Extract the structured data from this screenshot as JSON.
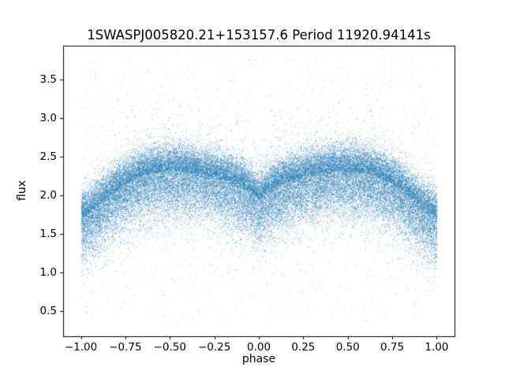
{
  "figure": {
    "background_color": "#ffffff",
    "text_color": "#000000"
  },
  "chart_data": {
    "type": "scatter",
    "title": "1SWASPJ005820.21+153157.6 Period 11920.94141s",
    "xlabel": "phase",
    "ylabel": "flux",
    "xlim": [
      -1.1,
      1.1
    ],
    "ylim": [
      0.17,
      3.94
    ],
    "x_tick_labels": [
      "−1.00",
      "−0.75",
      "−0.50",
      "−0.25",
      "0.00",
      "0.25",
      "0.50",
      "0.75",
      "1.00"
    ],
    "x_tick_values": [
      -1.0,
      -0.75,
      -0.5,
      -0.25,
      0.0,
      0.25,
      0.5,
      0.75,
      1.0
    ],
    "y_tick_labels": [
      "0.5",
      "1.0",
      "1.5",
      "2.0",
      "2.5",
      "3.0",
      "3.5"
    ],
    "y_tick_values": [
      0.5,
      1.0,
      1.5,
      2.0,
      2.5,
      3.0,
      3.5
    ],
    "grid": false,
    "legend": false,
    "marker_color": "#1f77b4",
    "marker_alpha": 0.5,
    "n_points": 48000,
    "description": "Phase-folded light curve of eclipsing binary 1SWASP J005820.21+153157.6. Dense double-wave scatter cloud: maxima flux ≈ 2.32 at phase ±0.5, deep minima flux ≈ 1.70 at phase ±1.0, shallower secondary minimum flux ≈ 1.95 at phase 0.0, with vertical scatter of roughly ±0.5 flux and sparse outliers spanning flux 0.35 to 3.8 across phase −1.0 to 1.0.",
    "model": {
      "phase_range": [
        -1.0,
        1.0
      ],
      "mean_abs_phase": [
        0.0,
        0.05,
        0.1,
        0.15,
        0.2,
        0.25,
        0.3,
        0.35,
        0.4,
        0.45,
        0.5,
        0.55,
        0.6,
        0.65,
        0.7,
        0.75,
        0.8,
        0.85,
        0.9,
        0.95,
        1.0
      ],
      "mean_flux": [
        1.95,
        2.05,
        2.12,
        2.17,
        2.21,
        2.24,
        2.27,
        2.29,
        2.31,
        2.32,
        2.32,
        2.31,
        2.29,
        2.26,
        2.21,
        2.15,
        2.07,
        1.98,
        1.88,
        1.78,
        1.7
      ],
      "sigma_up": 0.17,
      "sigma_down": 0.3,
      "halo_fraction": 0.05,
      "halo_sigma": 0.55,
      "outlier_fraction": 0.012,
      "outlier_flux_range": [
        0.35,
        3.78
      ]
    }
  }
}
